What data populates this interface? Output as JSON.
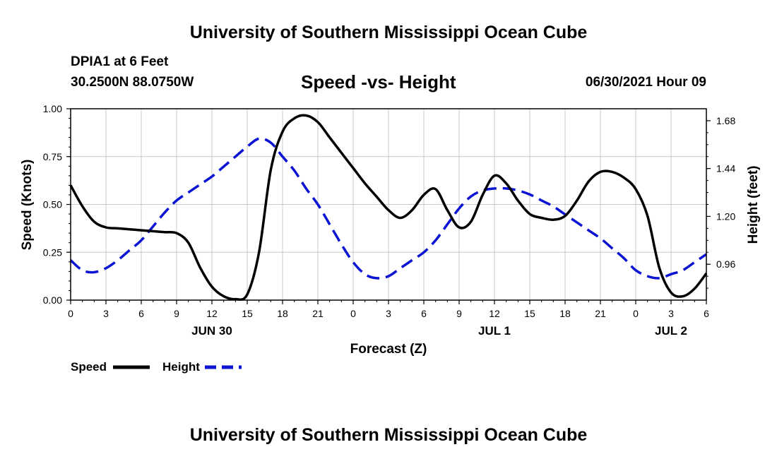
{
  "page": {
    "top_title": "University of Southern Mississippi Ocean Cube",
    "bottom_title": "University of Southern Mississippi Ocean Cube",
    "station": "DPIA1 at 6 Feet",
    "location": "30.2500N  88.0750W",
    "timestamp": "06/30/2021 Hour 09"
  },
  "colors": {
    "speed": "#000000",
    "height": "#0a14d2"
  },
  "chart_data": {
    "type": "line",
    "title": "Speed -vs- Height",
    "xlabel": "Forecast (Z)",
    "ylabel": "Speed (Knots)",
    "y2label": "Height (feet)",
    "xlim": [
      0,
      54
    ],
    "ylim": [
      0,
      1.0
    ],
    "y2lim": [
      0.78,
      1.74
    ],
    "x_ticks": [
      0,
      3,
      6,
      9,
      12,
      15,
      18,
      21,
      24,
      27,
      30,
      33,
      36,
      39,
      42,
      45,
      48,
      51,
      54
    ],
    "x_tick_labels": [
      "0",
      "3",
      "6",
      "9",
      "12",
      "15",
      "18",
      "21",
      "0",
      "3",
      "6",
      "9",
      "12",
      "15",
      "18",
      "21",
      "0",
      "3",
      "6"
    ],
    "y_ticks": [
      0,
      0.25,
      0.5,
      0.75,
      1.0
    ],
    "y_tick_labels": [
      "0.00",
      "0.25",
      "0.50",
      "0.75",
      "1.00"
    ],
    "y2_ticks": [
      0.96,
      1.2,
      1.44,
      1.68
    ],
    "y2_tick_labels": [
      "0.96",
      "1.20",
      "1.44",
      "1.68"
    ],
    "day_labels": [
      {
        "x": 12,
        "label": "JUN 30"
      },
      {
        "x": 36,
        "label": "JUL 1"
      },
      {
        "x": 51,
        "label": "JUL 2"
      }
    ],
    "series": [
      {
        "name": "Speed",
        "axis": "left",
        "style": "solid",
        "x": [
          0,
          1,
          2,
          3,
          4,
          5,
          6,
          7,
          8,
          9,
          10,
          11,
          12,
          13,
          14,
          15,
          16,
          17,
          18,
          19,
          20,
          21,
          22,
          23,
          24,
          25,
          26,
          27,
          28,
          29,
          30,
          31,
          32,
          33,
          34,
          35,
          36,
          37,
          38,
          39,
          40,
          41,
          42,
          43,
          44,
          45,
          46,
          47,
          48,
          49,
          50,
          51,
          52,
          53,
          54
        ],
        "values": [
          0.6,
          0.49,
          0.41,
          0.38,
          0.375,
          0.37,
          0.365,
          0.36,
          0.355,
          0.35,
          0.3,
          0.17,
          0.07,
          0.02,
          0.005,
          0.03,
          0.25,
          0.68,
          0.88,
          0.95,
          0.965,
          0.93,
          0.85,
          0.77,
          0.69,
          0.61,
          0.54,
          0.47,
          0.43,
          0.47,
          0.55,
          0.58,
          0.47,
          0.38,
          0.41,
          0.55,
          0.65,
          0.61,
          0.52,
          0.45,
          0.43,
          0.42,
          0.44,
          0.52,
          0.62,
          0.67,
          0.67,
          0.64,
          0.58,
          0.44,
          0.17,
          0.04,
          0.02,
          0.06,
          0.14
        ]
      },
      {
        "name": "Height",
        "axis": "right",
        "style": "dashed",
        "x": [
          0,
          1,
          2,
          3,
          4,
          5,
          6,
          7,
          8,
          9,
          10,
          11,
          12,
          13,
          14,
          15,
          16,
          17,
          18,
          19,
          20,
          21,
          22,
          23,
          24,
          25,
          26,
          27,
          28,
          29,
          30,
          31,
          32,
          33,
          34,
          35,
          36,
          37,
          38,
          39,
          40,
          41,
          42,
          43,
          44,
          45,
          46,
          47,
          48,
          49,
          50,
          51,
          52,
          53,
          54
        ],
        "values": [
          0.98,
          0.93,
          0.92,
          0.94,
          0.98,
          1.03,
          1.08,
          1.15,
          1.22,
          1.28,
          1.32,
          1.36,
          1.4,
          1.45,
          1.5,
          1.55,
          1.59,
          1.57,
          1.5,
          1.43,
          1.34,
          1.26,
          1.16,
          1.06,
          0.97,
          0.91,
          0.89,
          0.9,
          0.94,
          0.98,
          1.02,
          1.08,
          1.16,
          1.24,
          1.3,
          1.33,
          1.34,
          1.34,
          1.33,
          1.31,
          1.28,
          1.25,
          1.21,
          1.17,
          1.13,
          1.09,
          1.04,
          0.99,
          0.93,
          0.9,
          0.89,
          0.91,
          0.93,
          0.97,
          1.01
        ]
      }
    ],
    "legend": [
      "Speed",
      "Height"
    ]
  }
}
